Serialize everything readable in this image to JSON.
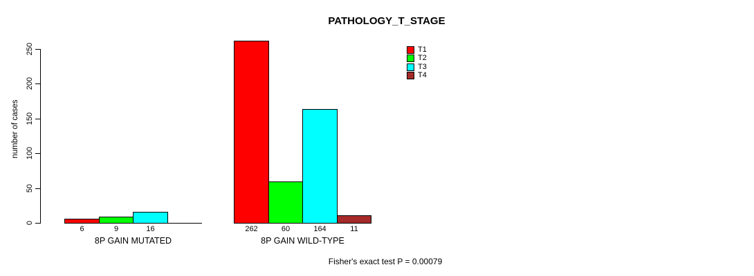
{
  "title": "PATHOLOGY_T_STAGE",
  "footer": "Fisher's exact test P = 0.00079",
  "chart_data": {
    "type": "bar",
    "title": "PATHOLOGY_T_STAGE",
    "xlabel": "",
    "ylabel": "number of cases",
    "ylim": [
      0,
      250
    ],
    "yticks": [
      0,
      50,
      100,
      150,
      200,
      250
    ],
    "grid": false,
    "legend_position": "top-right",
    "bar_value_labels_shown": true,
    "zero_value_labels_hidden": true,
    "categories": [
      "8P GAIN MUTATED",
      "8P GAIN WILD-TYPE"
    ],
    "series": [
      {
        "name": "T1",
        "color": "#FF0000",
        "values": [
          6,
          262
        ]
      },
      {
        "name": "T2",
        "color": "#00FF00",
        "values": [
          9,
          60
        ]
      },
      {
        "name": "T3",
        "color": "#00FFFF",
        "values": [
          16,
          164
        ]
      },
      {
        "name": "T4",
        "color": "#A52A2A",
        "values": [
          0,
          11
        ]
      }
    ],
    "bar_border_color": "#000000",
    "annotation": "Fisher's exact test P = 0.00079"
  }
}
